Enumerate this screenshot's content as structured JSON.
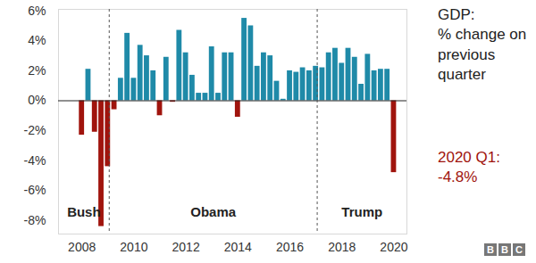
{
  "chart_data": {
    "type": "bar",
    "title": "GDP:\n% change on\nprevious\nquarter",
    "annotation": "2020 Q1:\n-4.8%",
    "logo": "BBC",
    "x": [
      2008,
      2008.25,
      2008.5,
      2008.75,
      2009,
      2009.25,
      2009.5,
      2009.75,
      2010,
      2010.25,
      2010.5,
      2010.75,
      2011,
      2011.25,
      2011.5,
      2011.75,
      2012,
      2012.25,
      2012.5,
      2012.75,
      2013,
      2013.25,
      2013.5,
      2013.75,
      2014,
      2014.25,
      2014.5,
      2014.75,
      2015,
      2015.25,
      2015.5,
      2015.75,
      2016,
      2016.25,
      2016.5,
      2016.75,
      2017,
      2017.25,
      2017.5,
      2017.75,
      2018,
      2018.25,
      2018.5,
      2018.75,
      2019,
      2019.25,
      2019.5,
      2019.75,
      2020
    ],
    "values": [
      -2.3,
      2.1,
      -2.1,
      -8.4,
      -4.4,
      -0.6,
      1.5,
      4.5,
      1.5,
      3.7,
      3.0,
      2.0,
      -1.0,
      2.9,
      -0.1,
      4.7,
      3.2,
      1.7,
      0.5,
      0.5,
      3.6,
      0.5,
      3.2,
      3.2,
      -1.1,
      5.5,
      5.0,
      2.3,
      3.2,
      3.0,
      1.3,
      0.1,
      2.0,
      1.9,
      2.2,
      2.0,
      2.3,
      2.2,
      3.2,
      3.5,
      2.5,
      3.5,
      2.9,
      1.1,
      3.1,
      2.0,
      2.1,
      2.1,
      -4.8
    ],
    "colors": [
      "#a0140d",
      "#1f8aa8",
      "#a0140d",
      "#a0140d",
      "#a0140d",
      "#a0140d",
      "#1f8aa8",
      "#1f8aa8",
      "#1f8aa8",
      "#1f8aa8",
      "#1f8aa8",
      "#1f8aa8",
      "#a0140d",
      "#1f8aa8",
      "#a0140d",
      "#1f8aa8",
      "#1f8aa8",
      "#1f8aa8",
      "#1f8aa8",
      "#1f8aa8",
      "#1f8aa8",
      "#1f8aa8",
      "#1f8aa8",
      "#1f8aa8",
      "#a0140d",
      "#1f8aa8",
      "#1f8aa8",
      "#1f8aa8",
      "#1f8aa8",
      "#1f8aa8",
      "#1f8aa8",
      "#1f8aa8",
      "#1f8aa8",
      "#1f8aa8",
      "#1f8aa8",
      "#1f8aa8",
      "#1f8aa8",
      "#1f8aa8",
      "#1f8aa8",
      "#1f8aa8",
      "#1f8aa8",
      "#1f8aa8",
      "#1f8aa8",
      "#1f8aa8",
      "#1f8aa8",
      "#1f8aa8",
      "#1f8aa8",
      "#1f8aa8",
      "#a0140d"
    ],
    "xlim": [
      2007.1,
      2020.5
    ],
    "xticks": [
      2008,
      2010,
      2012,
      2014,
      2016,
      2018,
      2020
    ],
    "ylim": [
      -8.9,
      6.1
    ],
    "yticks": [
      {
        "value": -8,
        "label": "-8%"
      },
      {
        "value": -6,
        "label": "-6%"
      },
      {
        "value": -4,
        "label": "-4%"
      },
      {
        "value": -2,
        "label": "-2%"
      },
      {
        "value": 0,
        "label": "0%"
      },
      {
        "value": 2,
        "label": "2%"
      },
      {
        "value": 4,
        "label": "4%"
      },
      {
        "value": 6,
        "label": "6%"
      }
    ],
    "dividers": [
      2009.05,
      2017.05
    ],
    "periods": [
      {
        "label": "Bush"
      },
      {
        "label": "Obama"
      },
      {
        "label": "Trump"
      }
    ],
    "grid": false
  }
}
